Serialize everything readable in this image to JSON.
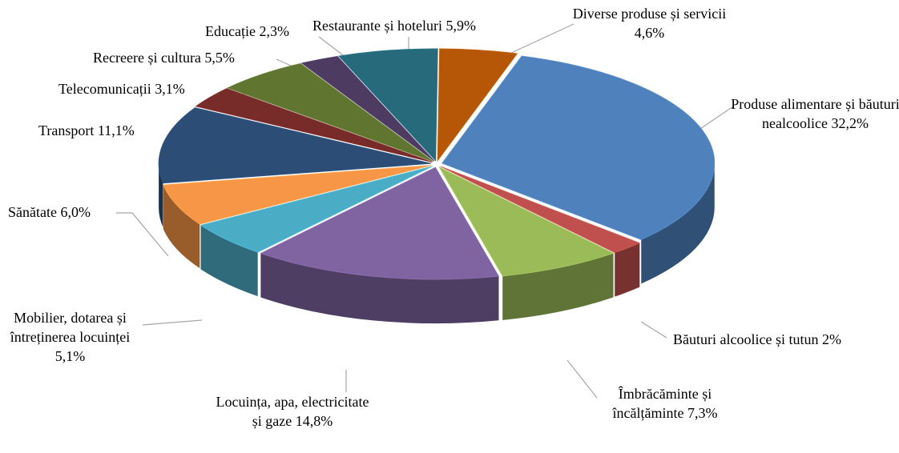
{
  "chart_data": {
    "type": "pie",
    "categories": [
      "Produse alimentare și băuturi nealcoolice",
      "Băuturi alcoolice și tutun",
      "Îmbrăcăminte și încălțăminte",
      "Locuința, apa, electricitate și gaze",
      "Mobilier, dotarea și întreținerea locuinței",
      "Sănătate",
      "Transport",
      "Telecomunicații",
      "Recreere și cultura",
      "Educație",
      "Restaurante și hoteluri",
      "Diverse produse și servicii"
    ],
    "values": [
      32.2,
      2,
      7.3,
      14.8,
      5.1,
      6.0,
      11.1,
      3.1,
      5.5,
      2.3,
      5.9,
      4.6
    ],
    "value_labels": [
      "32,2%",
      "2%",
      "7,3%",
      "14,8%",
      "5,1%",
      "6,0%",
      "11,1%",
      "3,1%",
      "5,5%",
      "2,3%",
      "5,9%",
      "4,6%"
    ],
    "colors": [
      "#4f81bd",
      "#c0504d",
      "#9bbb59",
      "#8064a2",
      "#4bacc6",
      "#f79646",
      "#2c4d75",
      "#772c2a",
      "#5f7530",
      "#4d3b62",
      "#276a7c",
      "#b65708"
    ]
  }
}
